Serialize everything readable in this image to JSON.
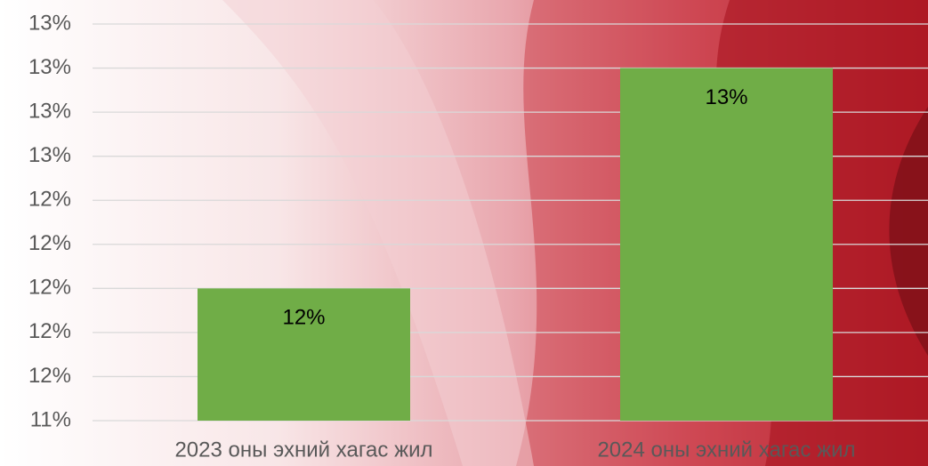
{
  "chart_data": {
    "type": "bar",
    "categories": [
      "2023 оны эхний хагас жил",
      "2024 оны эхний хагас жил"
    ],
    "values": [
      12,
      13
    ],
    "value_labels": [
      "12%",
      "13%"
    ],
    "color": "#70ad47",
    "ylim": [
      11.4,
      13.2
    ],
    "yticks": [
      {
        "value": 11.4,
        "label": "11%"
      },
      {
        "value": 11.6,
        "label": "12%"
      },
      {
        "value": 11.8,
        "label": "12%"
      },
      {
        "value": 12.0,
        "label": "12%"
      },
      {
        "value": 12.2,
        "label": "12%"
      },
      {
        "value": 12.4,
        "label": "12%"
      },
      {
        "value": 12.6,
        "label": "13%"
      },
      {
        "value": 12.8,
        "label": "13%"
      },
      {
        "value": 13.0,
        "label": "13%"
      },
      {
        "value": 13.2,
        "label": "13%"
      }
    ],
    "grid": true
  }
}
